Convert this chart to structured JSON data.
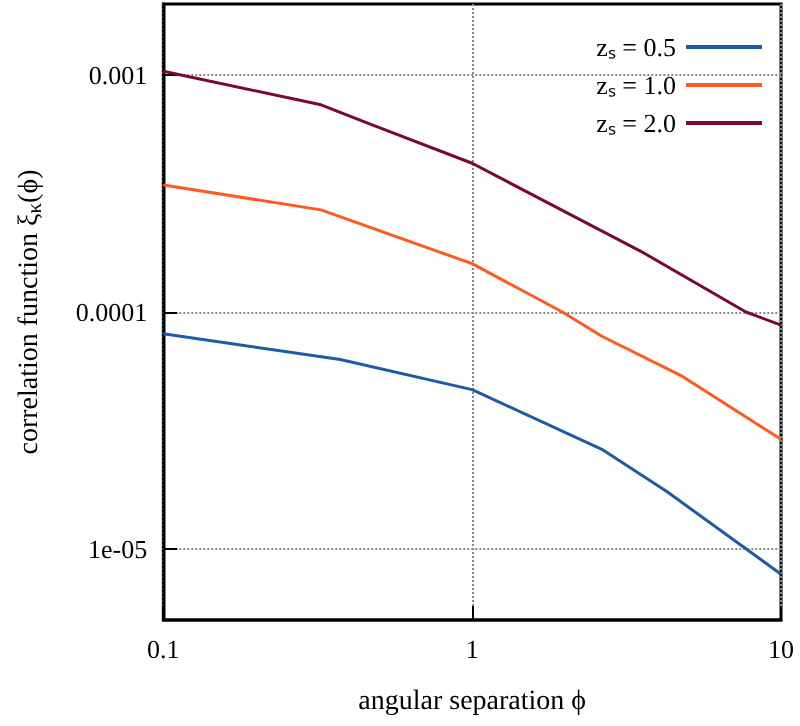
{
  "chart_data": {
    "type": "line",
    "xlabel": "angular separation ϕ",
    "ylabel": "correlation function ξ$_{κ}$(ϕ)",
    "log": "xy",
    "xlim": [
      0.1,
      10
    ],
    "xticks": [
      0.1,
      1,
      10
    ],
    "ylim": [
      5e-06,
      0.002
    ],
    "yticks": [
      {
        "value": 1e-05,
        "label": "1e-05"
      },
      0.0001,
      0.001
    ],
    "grid": true,
    "legend": "top right",
    "marker": "none",
    "line_style": "solid",
    "series": [
      {
        "name": "zₛ = 0.5",
        "color": "#1f5aa6",
        "x": [
          0.1,
          0.374,
          1,
          2.63,
          4.28,
          7.7,
          10
        ],
        "values": [
          8.1e-05,
          6.3e-05,
          4.7e-05,
          2.63e-05,
          1.74e-05,
          1e-05,
          7.8e-06
        ]
      },
      {
        "name": "zₛ = 1.0",
        "color": "#ff5a1f",
        "x": [
          0.1,
          0.324,
          1,
          1.96,
          2.63,
          4.73,
          10
        ],
        "values": [
          0.000344,
          0.00027,
          0.00016,
          0.0001,
          7.9e-05,
          5.4e-05,
          2.9e-05
        ]
      },
      {
        "name": "zₛ = 2.0",
        "color": "#7b0a2a",
        "x": [
          0.1,
          0.324,
          0.47,
          1,
          3.53,
          7.7,
          10
        ],
        "values": [
          0.00104,
          0.00075,
          0.00062,
          0.000425,
          0.00018,
          0.0001,
          8.8e-05
        ]
      }
    ]
  }
}
